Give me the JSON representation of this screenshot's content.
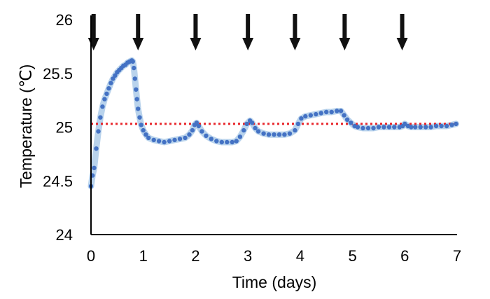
{
  "chart_data": {
    "type": "scatter",
    "xlabel": "Time (days)",
    "ylabel": "Temperature (℃)",
    "xlim": [
      0,
      7
    ],
    "ylim": [
      24,
      26
    ],
    "x_ticks": [
      "0",
      "1",
      "2",
      "3",
      "4",
      "5",
      "6",
      "7"
    ],
    "y_ticks": [
      "24",
      "24.5",
      "25",
      "25.5",
      "26"
    ],
    "grid": false,
    "reference_line": {
      "y": 25.03,
      "style": "dotted",
      "color": "#e8262b"
    },
    "arrows_at_days": [
      0.05,
      0.9,
      2.0,
      3.0,
      3.9,
      4.85,
      5.95
    ],
    "band_color": "#b9d3ec",
    "point_color": "#4472c4",
    "series": [
      {
        "points": [
          [
            0.0,
            24.45
          ],
          [
            0.03,
            24.55
          ],
          [
            0.06,
            24.62
          ],
          [
            0.1,
            24.8
          ],
          [
            0.14,
            24.96
          ],
          [
            0.18,
            25.09
          ],
          [
            0.22,
            25.19
          ],
          [
            0.26,
            25.26
          ],
          [
            0.3,
            25.31
          ],
          [
            0.34,
            25.36
          ],
          [
            0.38,
            25.41
          ],
          [
            0.42,
            25.45
          ],
          [
            0.46,
            25.48
          ],
          [
            0.5,
            25.51
          ],
          [
            0.54,
            25.53
          ],
          [
            0.58,
            25.55
          ],
          [
            0.62,
            25.57
          ],
          [
            0.66,
            25.58
          ],
          [
            0.7,
            25.6
          ],
          [
            0.74,
            25.61
          ],
          [
            0.78,
            25.62
          ],
          [
            0.8,
            25.61
          ],
          [
            0.82,
            25.55
          ],
          [
            0.84,
            25.45
          ],
          [
            0.86,
            25.35
          ],
          [
            0.88,
            25.26
          ],
          [
            0.9,
            25.17
          ],
          [
            0.93,
            25.09
          ],
          [
            0.96,
            25.02
          ],
          [
            1.0,
            24.97
          ],
          [
            1.05,
            24.93
          ],
          [
            1.1,
            24.9
          ],
          [
            1.2,
            24.88
          ],
          [
            1.3,
            24.87
          ],
          [
            1.4,
            24.86
          ],
          [
            1.5,
            24.87
          ],
          [
            1.6,
            24.88
          ],
          [
            1.7,
            24.89
          ],
          [
            1.8,
            24.9
          ],
          [
            1.88,
            24.93
          ],
          [
            1.94,
            24.97
          ],
          [
            1.98,
            25.02
          ],
          [
            2.02,
            25.04
          ],
          [
            2.06,
            25.01
          ],
          [
            2.12,
            24.96
          ],
          [
            2.2,
            24.92
          ],
          [
            2.3,
            24.89
          ],
          [
            2.4,
            24.87
          ],
          [
            2.5,
            24.86
          ],
          [
            2.6,
            24.86
          ],
          [
            2.7,
            24.86
          ],
          [
            2.78,
            24.87
          ],
          [
            2.85,
            24.91
          ],
          [
            2.92,
            24.97
          ],
          [
            2.98,
            25.03
          ],
          [
            3.04,
            25.06
          ],
          [
            3.08,
            25.04
          ],
          [
            3.14,
            24.99
          ],
          [
            3.2,
            24.96
          ],
          [
            3.3,
            24.94
          ],
          [
            3.4,
            24.93
          ],
          [
            3.5,
            24.93
          ],
          [
            3.6,
            24.93
          ],
          [
            3.7,
            24.93
          ],
          [
            3.8,
            24.94
          ],
          [
            3.9,
            24.97
          ],
          [
            3.96,
            25.03
          ],
          [
            4.02,
            25.08
          ],
          [
            4.1,
            25.1
          ],
          [
            4.2,
            25.11
          ],
          [
            4.3,
            25.12
          ],
          [
            4.4,
            25.13
          ],
          [
            4.5,
            25.14
          ],
          [
            4.6,
            25.14
          ],
          [
            4.7,
            25.15
          ],
          [
            4.78,
            25.15
          ],
          [
            4.84,
            25.11
          ],
          [
            4.9,
            25.07
          ],
          [
            4.97,
            25.04
          ],
          [
            5.04,
            25.01
          ],
          [
            5.1,
            25.0
          ],
          [
            5.2,
            24.99
          ],
          [
            5.3,
            24.99
          ],
          [
            5.4,
            24.99
          ],
          [
            5.5,
            25.0
          ],
          [
            5.6,
            25.0
          ],
          [
            5.7,
            25.0
          ],
          [
            5.8,
            25.0
          ],
          [
            5.9,
            25.0
          ],
          [
            5.96,
            25.01
          ],
          [
            6.0,
            25.03
          ],
          [
            6.06,
            25.01
          ],
          [
            6.12,
            25.0
          ],
          [
            6.2,
            25.0
          ],
          [
            6.3,
            25.0
          ],
          [
            6.4,
            25.0
          ],
          [
            6.5,
            25.0
          ],
          [
            6.6,
            25.01
          ],
          [
            6.7,
            25.01
          ],
          [
            6.8,
            25.01
          ],
          [
            6.9,
            25.02
          ],
          [
            6.98,
            25.03
          ]
        ]
      }
    ]
  }
}
